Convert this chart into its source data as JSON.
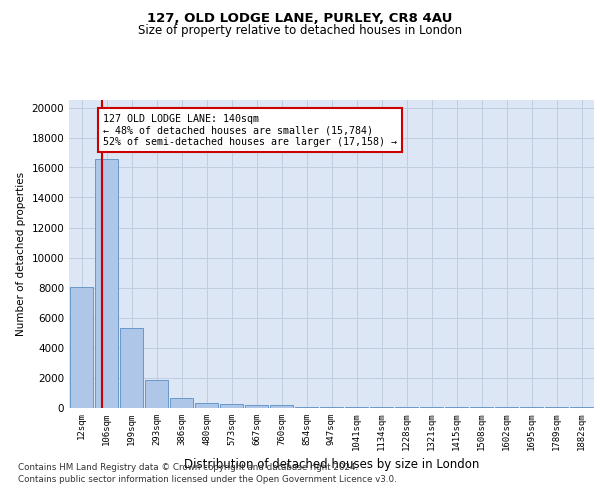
{
  "title1": "127, OLD LODGE LANE, PURLEY, CR8 4AU",
  "title2": "Size of property relative to detached houses in London",
  "xlabel": "Distribution of detached houses by size in London",
  "ylabel": "Number of detached properties",
  "bar_labels": [
    "12sqm",
    "106sqm",
    "199sqm",
    "293sqm",
    "386sqm",
    "480sqm",
    "573sqm",
    "667sqm",
    "760sqm",
    "854sqm",
    "947sqm",
    "1041sqm",
    "1134sqm",
    "1228sqm",
    "1321sqm",
    "1415sqm",
    "1508sqm",
    "1602sqm",
    "1695sqm",
    "1789sqm",
    "1882sqm"
  ],
  "bar_heights": [
    8050,
    16550,
    5320,
    1850,
    650,
    310,
    205,
    180,
    160,
    55,
    10,
    5,
    3,
    2,
    1,
    1,
    1,
    1,
    1,
    1,
    1
  ],
  "bar_color": "#aec6e8",
  "bar_edgecolor": "#5a8fc4",
  "vline_color": "#cc0000",
  "vline_linewidth": 1.5,
  "annotation_text": "127 OLD LODGE LANE: 140sqm\n← 48% of detached houses are smaller (15,784)\n52% of semi-detached houses are larger (17,158) →",
  "annotation_box_edgecolor": "#cc0000",
  "annotation_box_facecolor": "#ffffff",
  "ylim": [
    0,
    20500
  ],
  "yticks": [
    0,
    2000,
    4000,
    6000,
    8000,
    10000,
    12000,
    14000,
    16000,
    18000,
    20000
  ],
  "grid_color": "#c0cce0",
  "axes_background": "#dce6f5",
  "footer1": "Contains HM Land Registry data © Crown copyright and database right 2024.",
  "footer2": "Contains public sector information licensed under the Open Government Licence v3.0."
}
